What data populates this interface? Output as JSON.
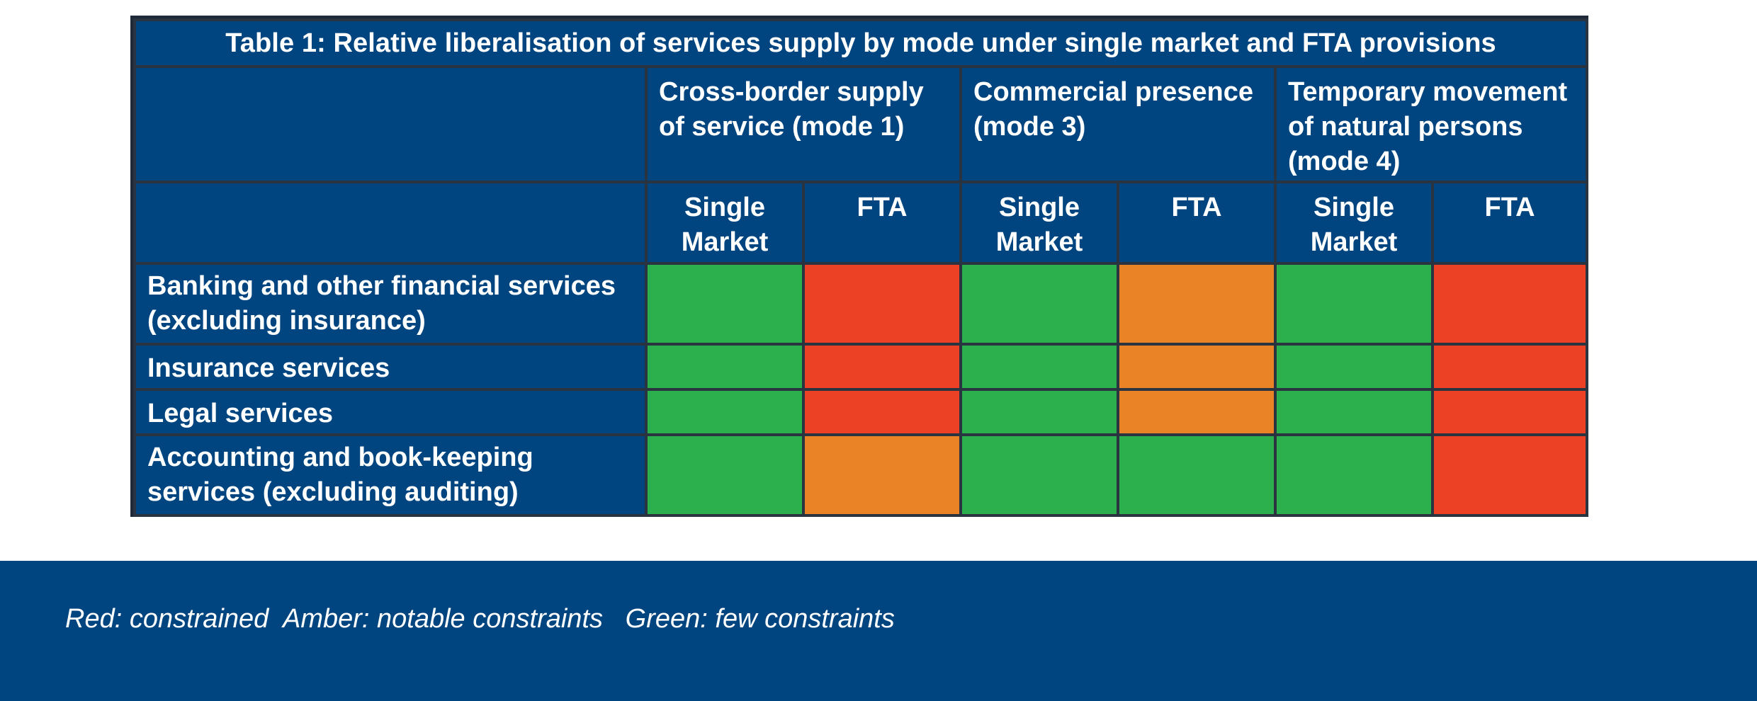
{
  "table": {
    "title": "Table 1: Relative liberalisation of services supply by mode under single market and FTA provisions",
    "modes": [
      "Cross-border supply of service (mode 1)",
      "Commercial presence (mode 3)",
      "Temporary movement of natural persons (mode 4)"
    ],
    "subheaders": [
      "Single Market",
      "FTA",
      "Single Market",
      "FTA",
      "Single Market",
      "FTA"
    ],
    "rows": [
      {
        "label": "Banking and other financial services (excluding insurance)",
        "cells": [
          "green",
          "red",
          "green",
          "amber",
          "green",
          "red"
        ]
      },
      {
        "label": "Insurance services",
        "cells": [
          "green",
          "red",
          "green",
          "amber",
          "green",
          "red"
        ]
      },
      {
        "label": "Legal services",
        "cells": [
          "green",
          "red",
          "green",
          "amber",
          "green",
          "red"
        ]
      },
      {
        "label": "Accounting and book-keeping services (excluding auditing)",
        "cells": [
          "green",
          "amber",
          "green",
          "green",
          "green",
          "red"
        ]
      }
    ]
  },
  "colors": {
    "header_blue": "#00457f",
    "green": "#2cb04d",
    "red": "#ec4125",
    "amber": "#e98325"
  },
  "legend": {
    "text": "Red: constrained  Amber: notable constraints   Green: few constraints"
  }
}
